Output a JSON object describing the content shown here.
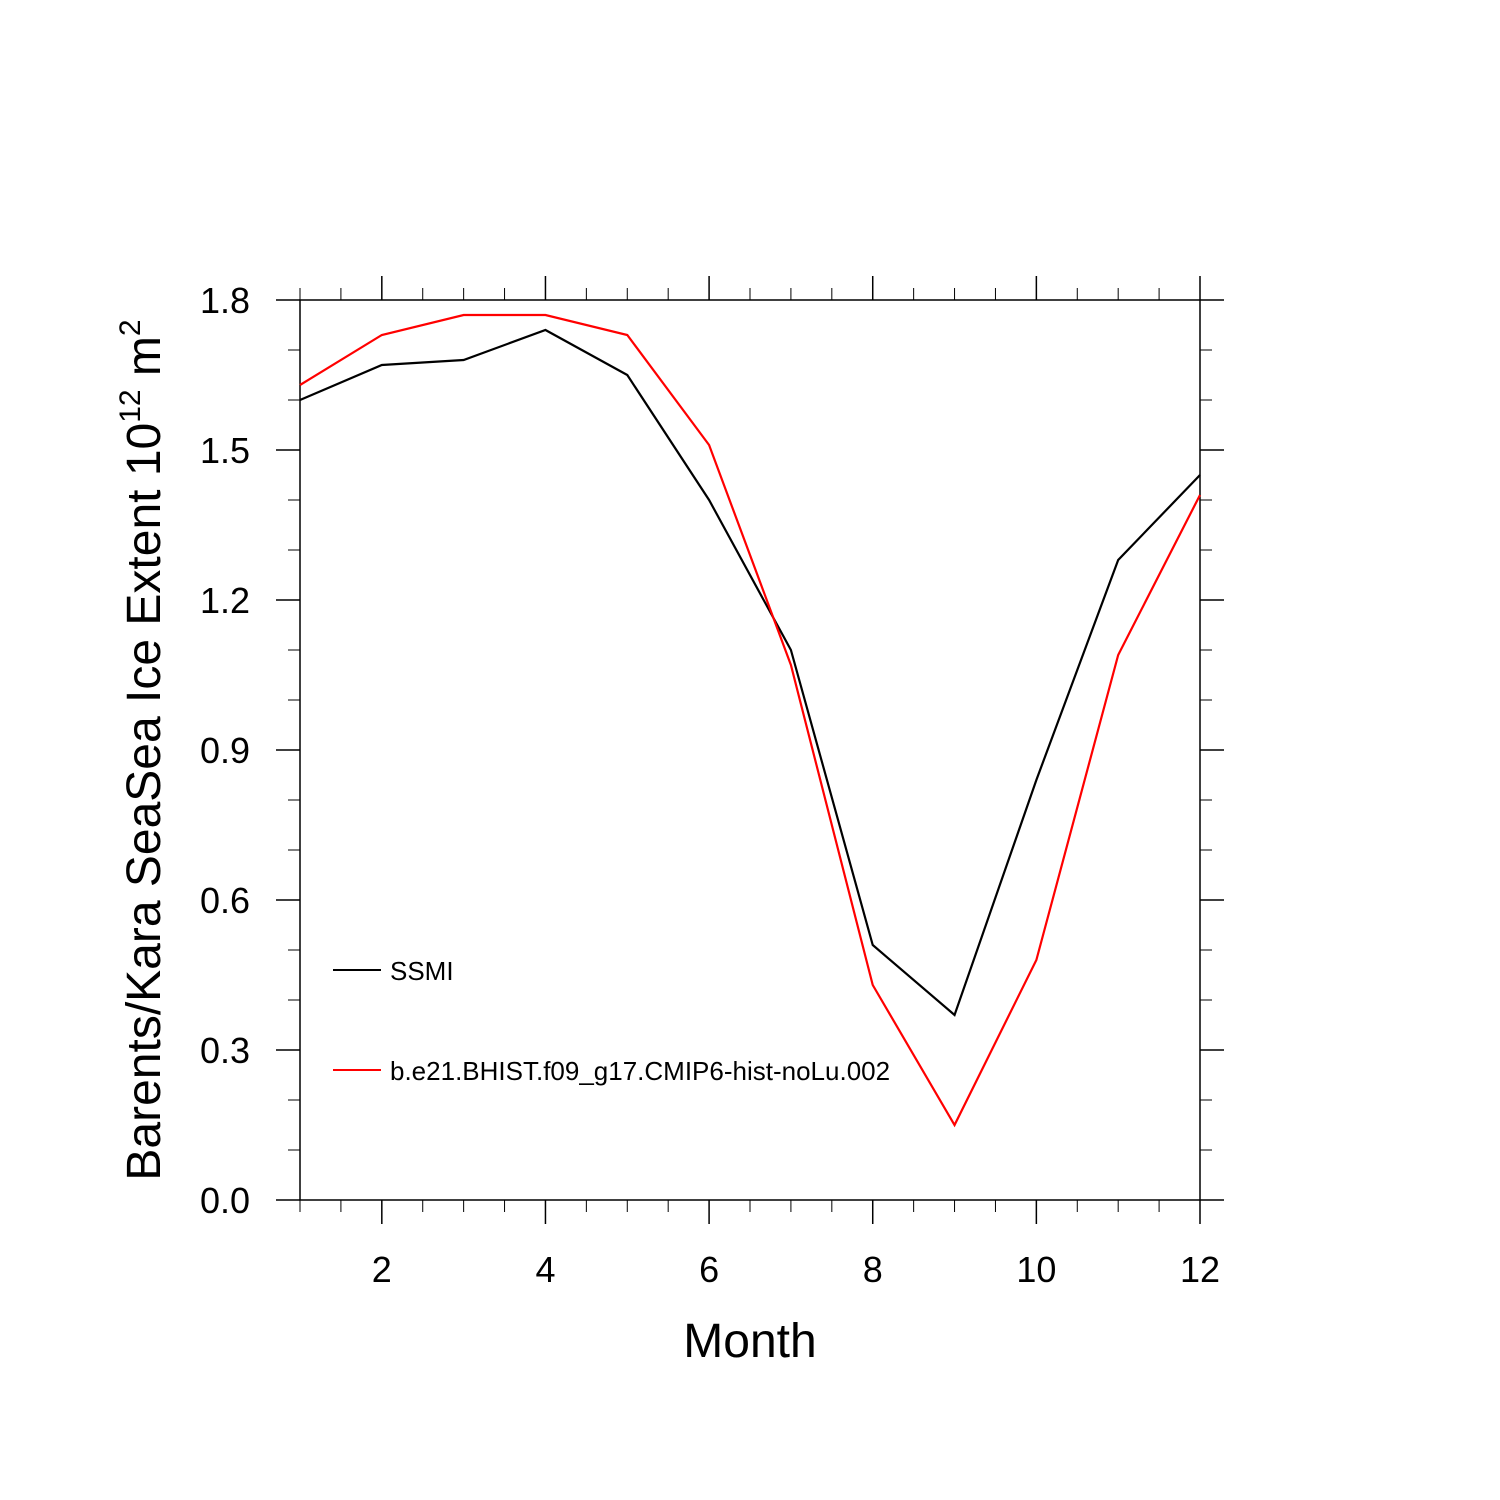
{
  "chart_data": {
    "type": "line",
    "xlabel": "Month",
    "ylabel": "Barents/Kara SeaSea Ice Extent 10",
    "ylabel_sup1": "12",
    "ylabel_unit": " m",
    "ylabel_sup2": "2",
    "xlim": [
      1,
      12
    ],
    "ylim": [
      0.0,
      1.8
    ],
    "x_ticks": [
      2,
      4,
      6,
      8,
      10,
      12
    ],
    "y_ticks": [
      "0.0",
      "0.3",
      "0.6",
      "0.9",
      "1.2",
      "1.5",
      "1.8"
    ],
    "x": [
      1,
      2,
      3,
      4,
      5,
      6,
      7,
      8,
      9,
      10,
      11,
      12
    ],
    "series": [
      {
        "name": "SSMI",
        "color": "#000000",
        "values": [
          1.6,
          1.67,
          1.68,
          1.74,
          1.65,
          1.4,
          1.1,
          0.51,
          0.37,
          0.84,
          1.28,
          1.45
        ]
      },
      {
        "name": "b.e21.BHIST.f09_g17.CMIP6-hist-noLu.002",
        "color": "#ff0000",
        "values": [
          1.63,
          1.73,
          1.77,
          1.77,
          1.73,
          1.51,
          1.07,
          0.43,
          0.15,
          0.48,
          1.09,
          1.41
        ]
      }
    ],
    "grid": false,
    "legend_position": "lower-left inside plot"
  }
}
